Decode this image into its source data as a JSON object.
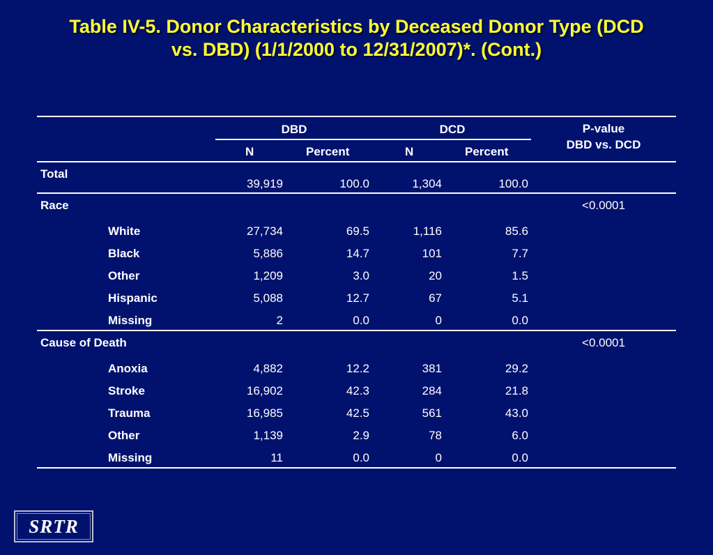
{
  "title": {
    "line1": "Table IV-5. Donor Characteristics by Deceased Donor Type (DCD",
    "line2": "vs. DBD) (1/1/2000 to 12/31/2007)*.  (Cont.)"
  },
  "table": {
    "header": {
      "dbd": "DBD",
      "dcd": "DCD",
      "pvalue_line1": "P-value",
      "pvalue_line2": "DBD vs. DCD",
      "n": "N",
      "percent": "Percent"
    },
    "total": {
      "label": "Total",
      "dbd_n": "39,919",
      "dbd_pct": "100.0",
      "dcd_n": "1,304",
      "dcd_pct": "100.0"
    },
    "race": {
      "label": "Race",
      "pvalue": "<0.0001",
      "rows": [
        {
          "label": "White",
          "dbd_n": "27,734",
          "dbd_pct": "69.5",
          "dcd_n": "1,116",
          "dcd_pct": "85.6"
        },
        {
          "label": "Black",
          "dbd_n": "5,886",
          "dbd_pct": "14.7",
          "dcd_n": "101",
          "dcd_pct": "7.7"
        },
        {
          "label": "Other",
          "dbd_n": "1,209",
          "dbd_pct": "3.0",
          "dcd_n": "20",
          "dcd_pct": "1.5"
        },
        {
          "label": "Hispanic",
          "dbd_n": "5,088",
          "dbd_pct": "12.7",
          "dcd_n": "67",
          "dcd_pct": "5.1"
        },
        {
          "label": "Missing",
          "dbd_n": "2",
          "dbd_pct": "0.0",
          "dcd_n": "0",
          "dcd_pct": "0.0"
        }
      ]
    },
    "cause": {
      "label": "Cause of Death",
      "pvalue": "<0.0001",
      "rows": [
        {
          "label": "Anoxia",
          "dbd_n": "4,882",
          "dbd_pct": "12.2",
          "dcd_n": "381",
          "dcd_pct": "29.2"
        },
        {
          "label": "Stroke",
          "dbd_n": "16,902",
          "dbd_pct": "42.3",
          "dcd_n": "284",
          "dcd_pct": "21.8"
        },
        {
          "label": "Trauma",
          "dbd_n": "16,985",
          "dbd_pct": "42.5",
          "dcd_n": "561",
          "dcd_pct": "43.0"
        },
        {
          "label": "Other",
          "dbd_n": "1,139",
          "dbd_pct": "2.9",
          "dcd_n": "78",
          "dcd_pct": "6.0"
        },
        {
          "label": "Missing",
          "dbd_n": "11",
          "dbd_pct": "0.0",
          "dcd_n": "0",
          "dcd_pct": "0.0"
        }
      ]
    }
  },
  "logo": "SRTR",
  "colors": {
    "background": "#00126e",
    "title": "#ffff33",
    "text": "#ffffff"
  }
}
